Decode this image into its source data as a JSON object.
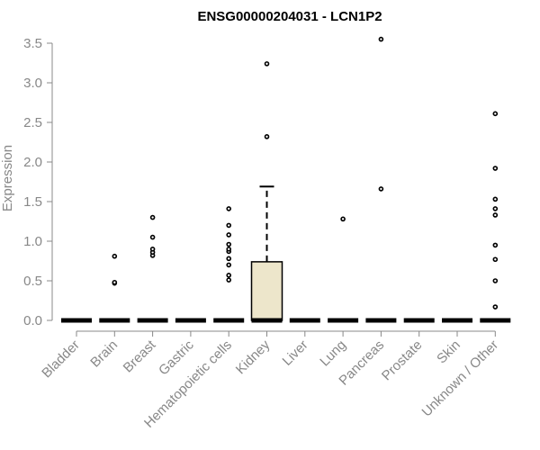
{
  "chart_data": {
    "type": "box",
    "title": "ENSG00000204031 - LCN1P2",
    "xlabel": "",
    "ylabel": "Expression",
    "ylim": [
      0,
      3.55
    ],
    "yticks": [
      "0.0",
      "0.5",
      "1.0",
      "1.5",
      "2.0",
      "2.5",
      "3.0",
      "3.5"
    ],
    "grid": false,
    "box_fill_color": "#ede6cb",
    "categories": [
      "Bladder",
      "Brain",
      "Breast",
      "Gastric",
      "Hematopoietic cells",
      "Kidney",
      "Liver",
      "Lung",
      "Pancreas",
      "Prostate",
      "Skin",
      "Unknown / Other"
    ],
    "boxes": [
      {
        "category": "Bladder",
        "min": 0,
        "q1": 0,
        "median": 0,
        "q3": 0,
        "max": 0,
        "outliers": []
      },
      {
        "category": "Brain",
        "min": 0,
        "q1": 0,
        "median": 0,
        "q3": 0,
        "max": 0,
        "outliers": [
          0.47,
          0.48,
          0.81
        ]
      },
      {
        "category": "Breast",
        "min": 0,
        "q1": 0,
        "median": 0,
        "q3": 0,
        "max": 0,
        "outliers": [
          0.82,
          0.86,
          0.9,
          1.05,
          1.3
        ]
      },
      {
        "category": "Gastric",
        "min": 0,
        "q1": 0,
        "median": 0,
        "q3": 0,
        "max": 0,
        "outliers": []
      },
      {
        "category": "Hematopoietic cells",
        "min": 0,
        "q1": 0,
        "median": 0,
        "q3": 0,
        "max": 0,
        "outliers": [
          0.51,
          0.57,
          0.7,
          0.78,
          0.87,
          0.9,
          0.96,
          1.08,
          1.2,
          1.41
        ]
      },
      {
        "category": "Kidney",
        "min": 0,
        "q1": 0,
        "median": 0,
        "q3": 0.74,
        "max": 1.69,
        "outliers": [
          2.32,
          3.24
        ]
      },
      {
        "category": "Liver",
        "min": 0,
        "q1": 0,
        "median": 0,
        "q3": 0,
        "max": 0,
        "outliers": []
      },
      {
        "category": "Lung",
        "min": 0,
        "q1": 0,
        "median": 0,
        "q3": 0,
        "max": 0,
        "outliers": [
          1.28
        ]
      },
      {
        "category": "Pancreas",
        "min": 0,
        "q1": 0,
        "median": 0,
        "q3": 0,
        "max": 0,
        "outliers": [
          1.66,
          3.55
        ]
      },
      {
        "category": "Prostate",
        "min": 0,
        "q1": 0,
        "median": 0,
        "q3": 0,
        "max": 0,
        "outliers": []
      },
      {
        "category": "Skin",
        "min": 0,
        "q1": 0,
        "median": 0,
        "q3": 0,
        "max": 0,
        "outliers": []
      },
      {
        "category": "Unknown / Other",
        "min": 0,
        "q1": 0,
        "median": 0,
        "q3": 0,
        "max": 0,
        "outliers": [
          0.17,
          0.5,
          0.77,
          0.95,
          1.33,
          1.41,
          1.53,
          1.92,
          2.61
        ]
      }
    ]
  }
}
